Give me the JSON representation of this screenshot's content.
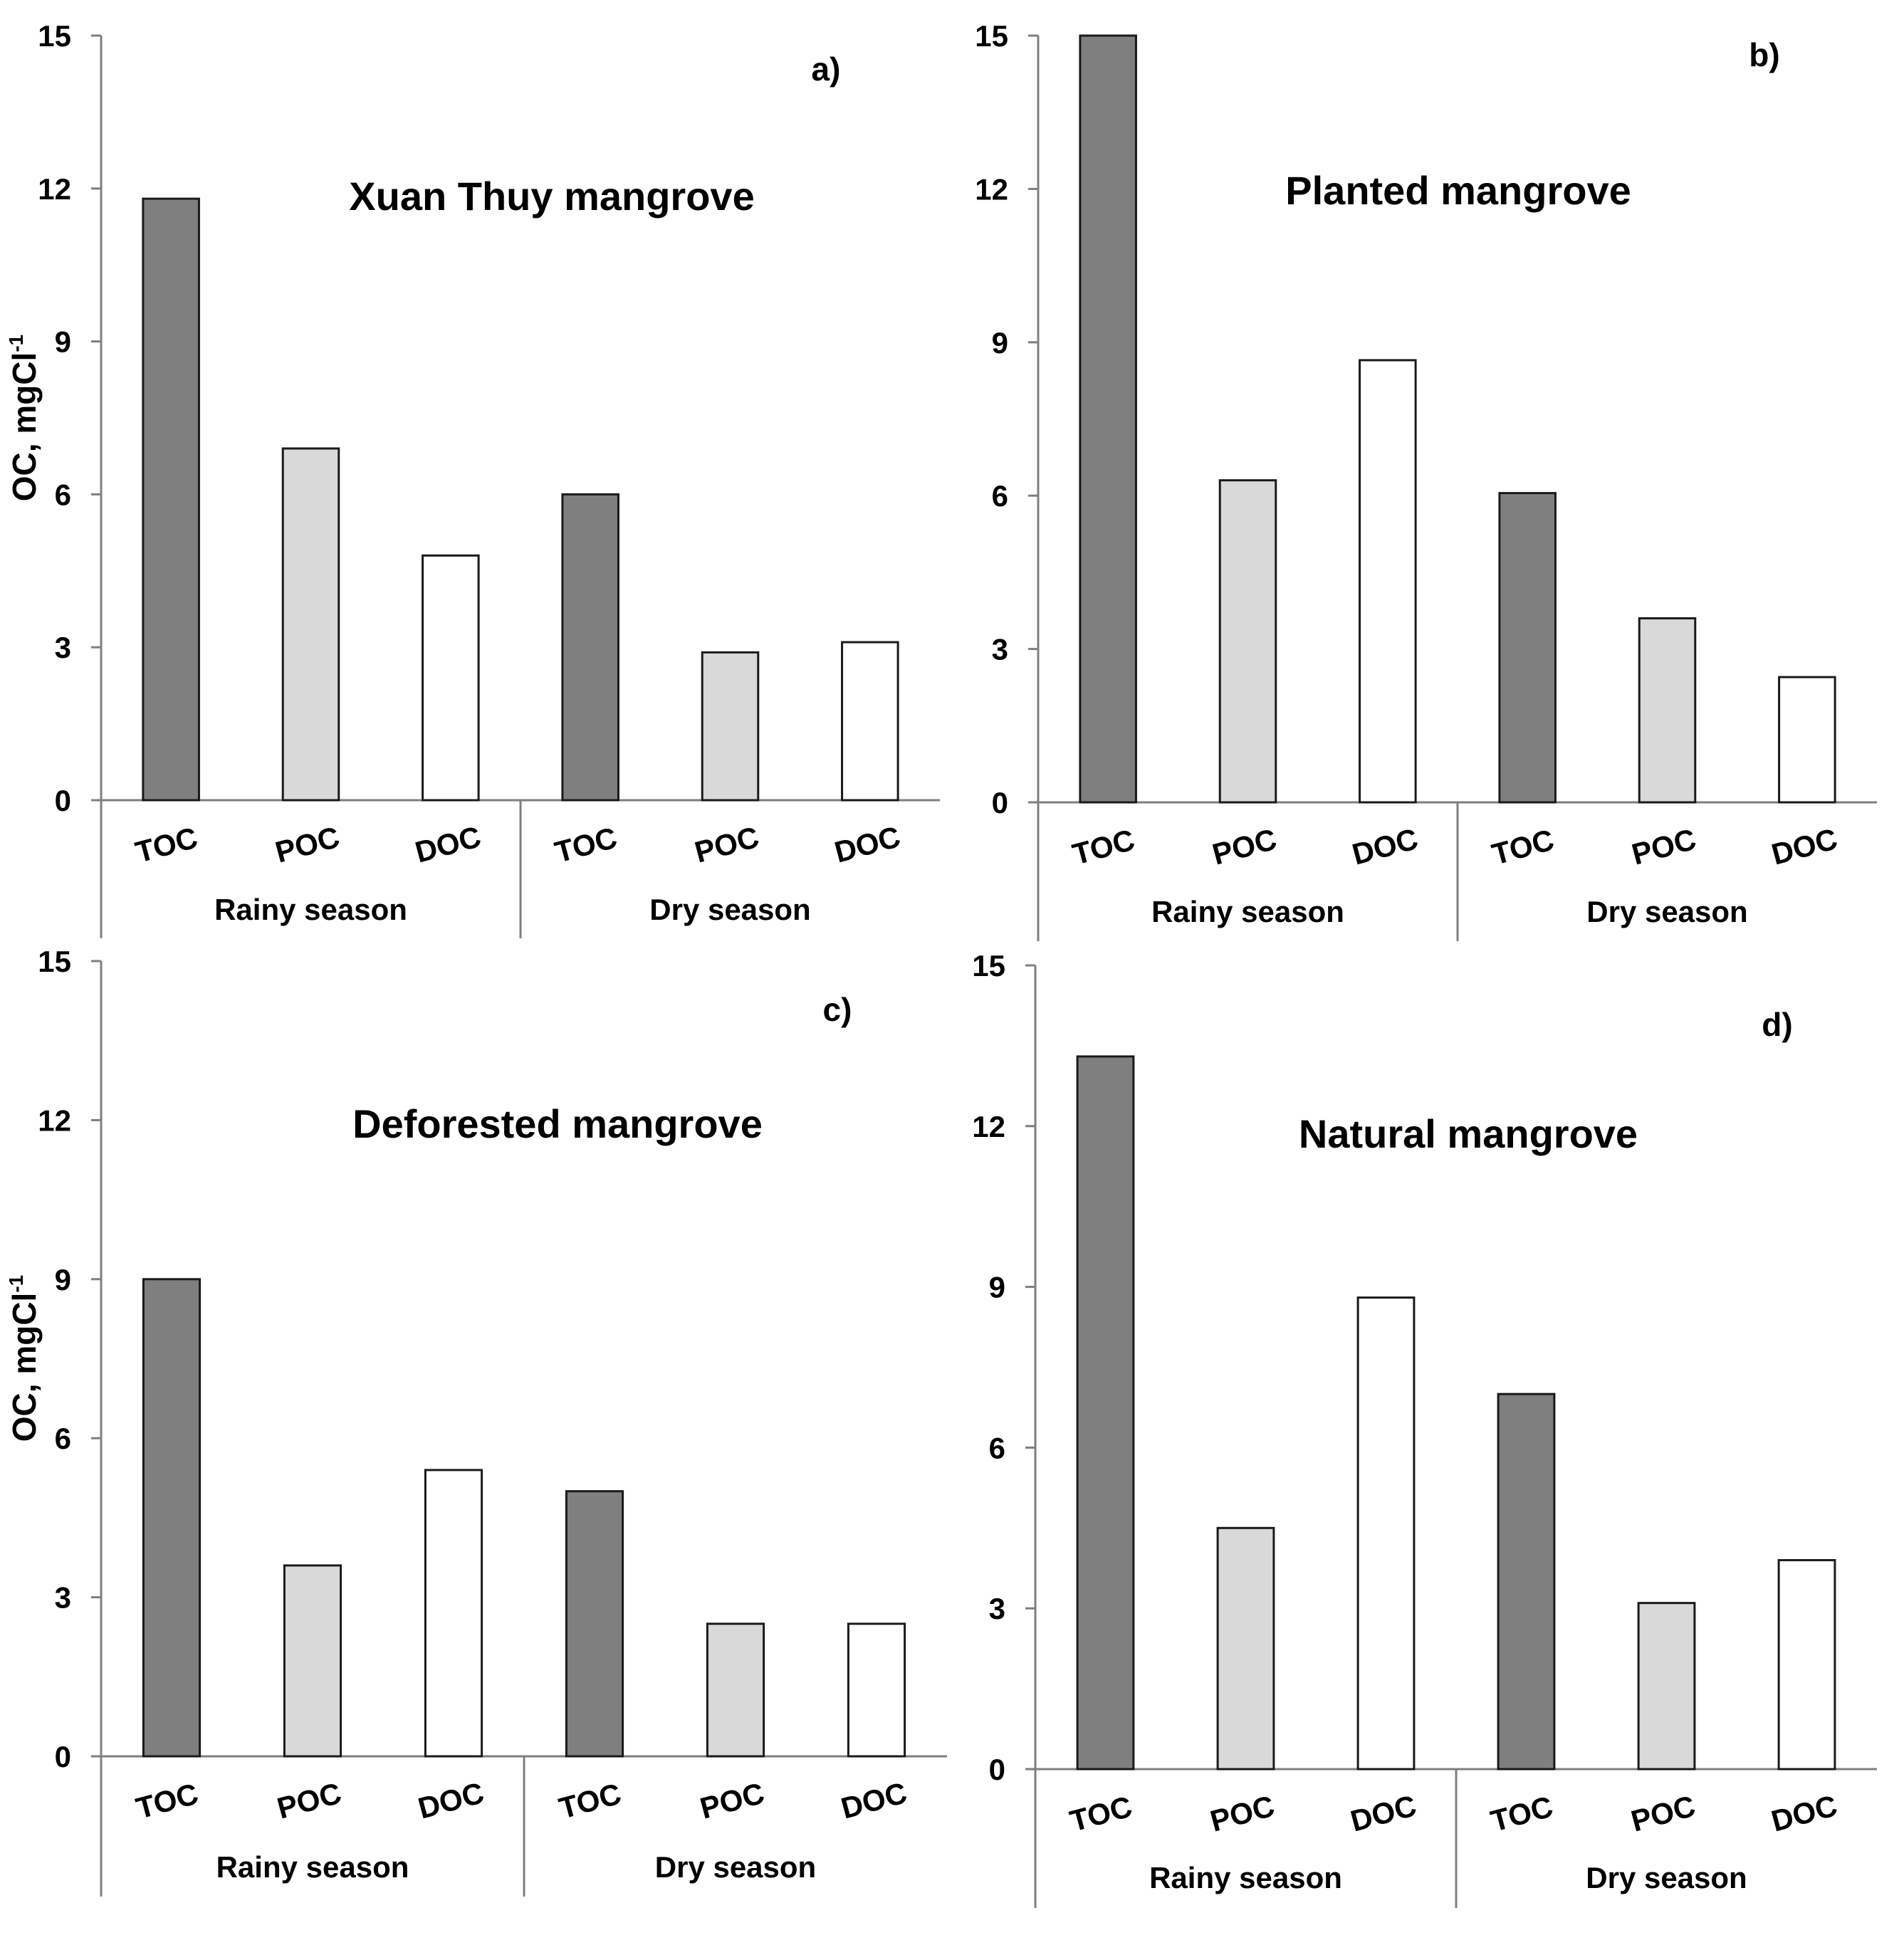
{
  "colors": {
    "TOC": "#7f7f7f",
    "POC": "#d9d9d9",
    "DOC": "#ffffff"
  },
  "chart_data": [
    {
      "type": "bar",
      "panel": "a)",
      "title": "Xuan Thuy mangrove",
      "ylabel": "OC, mgCl",
      "ylabel_sup": "-1",
      "ylim": [
        0,
        15
      ],
      "yticks": [
        "0",
        "3",
        "6",
        "9",
        "12",
        "15"
      ],
      "groups": [
        "Rainy season",
        "Dry season"
      ],
      "categories": [
        "TOC",
        "POC",
        "DOC",
        "TOC",
        "POC",
        "DOC"
      ],
      "values": [
        11.8,
        6.9,
        4.8,
        6.0,
        2.9,
        3.1
      ]
    },
    {
      "type": "bar",
      "panel": "b)",
      "title": "Planted mangrove",
      "ylabel": "",
      "ylabel_sup": "",
      "ylim": [
        0,
        15
      ],
      "yticks": [
        "0",
        "3",
        "6",
        "9",
        "12",
        "15"
      ],
      "groups": [
        "Rainy season",
        "Dry season"
      ],
      "categories": [
        "TOC",
        "POC",
        "DOC",
        "TOC",
        "POC",
        "DOC"
      ],
      "values": [
        15.0,
        6.3,
        8.65,
        6.05,
        3.6,
        2.45
      ]
    },
    {
      "type": "bar",
      "panel": "c)",
      "title": "Deforested mangrove",
      "ylabel": "OC, mgCl",
      "ylabel_sup": "-1",
      "ylim": [
        0,
        15
      ],
      "yticks": [
        "0",
        "3",
        "6",
        "9",
        "12",
        "15"
      ],
      "groups": [
        "Rainy season",
        "Dry season"
      ],
      "categories": [
        "TOC",
        "POC",
        "DOC",
        "TOC",
        "POC",
        "DOC"
      ],
      "values": [
        9.0,
        3.6,
        5.4,
        5.0,
        2.5,
        2.5
      ]
    },
    {
      "type": "bar",
      "panel": "d)",
      "title": "Natural mangrove",
      "ylabel": "",
      "ylabel_sup": "",
      "ylim": [
        0,
        15
      ],
      "yticks": [
        "0",
        "3",
        "6",
        "9",
        "12",
        "15"
      ],
      "groups": [
        "Rainy season",
        "Dry season"
      ],
      "categories": [
        "TOC",
        "POC",
        "DOC",
        "TOC",
        "POC",
        "DOC"
      ],
      "values": [
        13.3,
        4.5,
        8.8,
        7.0,
        3.1,
        3.9
      ]
    }
  ]
}
